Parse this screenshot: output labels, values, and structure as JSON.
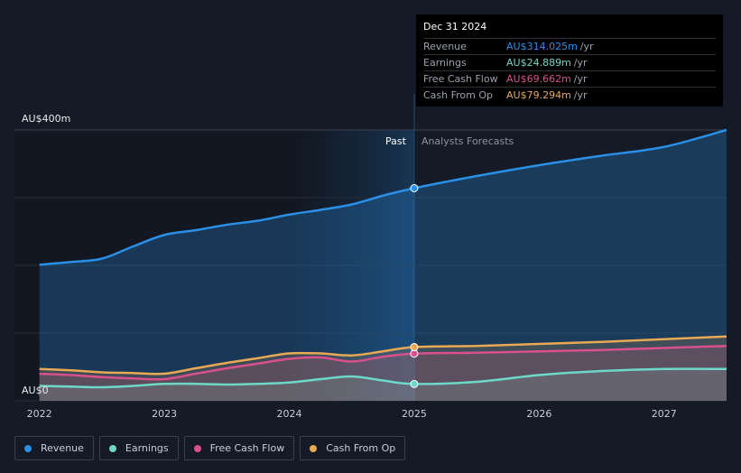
{
  "chart_data": {
    "type": "area",
    "y_axis_labels": [
      "AU$400m",
      "AU$0"
    ],
    "ylim": [
      0,
      400
    ],
    "x_ticks": [
      2022,
      2023,
      2024,
      2025,
      2026,
      2027
    ],
    "xlim": [
      2021.8,
      2027.5
    ],
    "divider_x": 2025.0,
    "past_label": "Past",
    "forecast_label": "Analysts Forecasts",
    "series": [
      {
        "name": "Revenue",
        "color": "#2a8fe6",
        "x": [
          2022.0,
          2022.25,
          2022.5,
          2022.75,
          2023.0,
          2023.25,
          2023.5,
          2023.75,
          2024.0,
          2024.25,
          2024.5,
          2024.75,
          2025.0,
          2025.5,
          2026.0,
          2026.5,
          2027.0,
          2027.5
        ],
        "y": [
          201,
          205,
          210,
          228,
          245,
          252,
          260,
          266,
          275,
          282,
          290,
          303,
          314,
          332,
          348,
          362,
          375,
          400
        ]
      },
      {
        "name": "Earnings",
        "color": "#6ed8c8",
        "x": [
          2022.0,
          2022.25,
          2022.5,
          2022.75,
          2023.0,
          2023.25,
          2023.5,
          2023.75,
          2024.0,
          2024.25,
          2024.5,
          2024.75,
          2025.0,
          2025.5,
          2026.0,
          2026.5,
          2027.0,
          2027.5
        ],
        "y": [
          22,
          21,
          20,
          22,
          25,
          25,
          24,
          25,
          27,
          32,
          36,
          30,
          24.9,
          28,
          38,
          44,
          47,
          47
        ]
      },
      {
        "name": "Free Cash Flow",
        "color": "#d8508c",
        "x": [
          2022.0,
          2022.25,
          2022.5,
          2022.75,
          2023.0,
          2023.25,
          2023.5,
          2023.75,
          2024.0,
          2024.25,
          2024.5,
          2024.75,
          2025.0,
          2025.5,
          2026.0,
          2026.5,
          2027.0,
          2027.5
        ],
        "y": [
          40,
          38,
          35,
          33,
          32,
          40,
          48,
          55,
          62,
          64,
          58,
          65,
          69.7,
          71,
          73,
          75,
          78,
          81
        ]
      },
      {
        "name": "Cash From Op",
        "color": "#e8a954",
        "x": [
          2022.0,
          2022.25,
          2022.5,
          2022.75,
          2023.0,
          2023.25,
          2023.5,
          2023.75,
          2024.0,
          2024.25,
          2024.5,
          2024.75,
          2025.0,
          2025.5,
          2026.0,
          2026.5,
          2027.0,
          2027.5
        ],
        "y": [
          47,
          45,
          42,
          41,
          40,
          48,
          56,
          63,
          70,
          70,
          67,
          73,
          79.3,
          81,
          84,
          87,
          91,
          95
        ]
      }
    ]
  },
  "tooltip": {
    "date": "Dec 31 2024",
    "rows": [
      {
        "label": "Revenue",
        "value": "AU$314.025m",
        "unit": "/yr",
        "color": "#2a8fe6"
      },
      {
        "label": "Earnings",
        "value": "AU$24.889m",
        "unit": "/yr",
        "color": "#6ed8c8"
      },
      {
        "label": "Free Cash Flow",
        "value": "AU$69.662m",
        "unit": "/yr",
        "color": "#d8508c"
      },
      {
        "label": "Cash From Op",
        "value": "AU$79.294m",
        "unit": "/yr",
        "color": "#e8a954"
      }
    ]
  },
  "legend": [
    {
      "label": "Revenue",
      "color": "#2a8fe6"
    },
    {
      "label": "Earnings",
      "color": "#6ed8c8"
    },
    {
      "label": "Free Cash Flow",
      "color": "#d8508c"
    },
    {
      "label": "Cash From Op",
      "color": "#e8a954"
    }
  ]
}
